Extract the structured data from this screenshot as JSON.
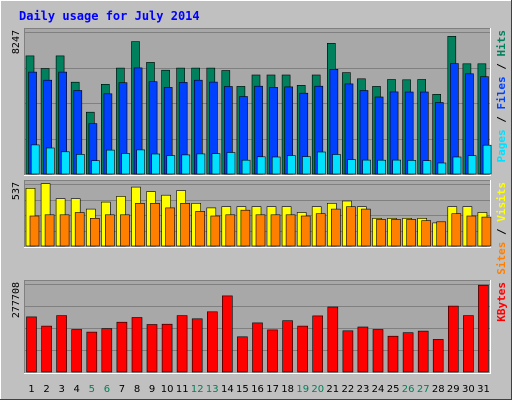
{
  "chart_data": [
    {
      "type": "bar",
      "title": "Daily usage for July 2014",
      "categories": [
        "1",
        "2",
        "3",
        "4",
        "5",
        "6",
        "7",
        "8",
        "9",
        "10",
        "11",
        "12",
        "13",
        "14",
        "15",
        "16",
        "17",
        "18",
        "19",
        "20",
        "21",
        "22",
        "23",
        "24",
        "25",
        "26",
        "27",
        "28",
        "29",
        "30",
        "31"
      ],
      "weekend_days": [
        "5",
        "6",
        "12",
        "13",
        "19",
        "20",
        "26",
        "27"
      ],
      "panel": "hits",
      "ylabel_parts": [
        "Pages",
        "Files",
        "Hits"
      ],
      "ytick_label": "8247",
      "ylim": [
        0,
        8247
      ],
      "series": [
        {
          "name": "Hits",
          "color": "#00805c",
          "values": [
            6860,
            6130,
            6860,
            5330,
            3590,
            5210,
            6150,
            7690,
            6480,
            6030,
            6150,
            6150,
            6150,
            6010,
            5090,
            5750,
            5750,
            5750,
            5150,
            5750,
            7590,
            5890,
            5530,
            5090,
            5490,
            5470,
            5490,
            4630,
            8000,
            6400,
            6400
          ]
        },
        {
          "name": "Files",
          "color": "#0040ff",
          "values": [
            5920,
            5450,
            5920,
            4850,
            2930,
            4660,
            5300,
            6160,
            5360,
            5030,
            5320,
            5450,
            5340,
            5080,
            4500,
            5100,
            5030,
            5060,
            4690,
            5100,
            6080,
            5230,
            4850,
            4470,
            4770,
            4760,
            4760,
            4150,
            6410,
            5820,
            5650
          ]
        },
        {
          "name": "Pages",
          "color": "#00e0ff",
          "values": [
            1690,
            1510,
            1290,
            1140,
            770,
            1390,
            1190,
            1400,
            1160,
            1070,
            1110,
            1170,
            1180,
            1250,
            800,
            1000,
            990,
            1070,
            1010,
            1280,
            1130,
            830,
            810,
            800,
            810,
            790,
            770,
            640,
            990,
            1060,
            1670
          ]
        }
      ]
    },
    {
      "type": "bar",
      "panel": "visits",
      "ylabel_parts": [
        "Sites",
        "Visits"
      ],
      "ytick_label": "537",
      "ylim": [
        0,
        537
      ],
      "series": [
        {
          "name": "Visits",
          "color": "#ffff00",
          "values": [
            500,
            540,
            410,
            410,
            320,
            380,
            430,
            510,
            470,
            440,
            480,
            370,
            330,
            340,
            340,
            340,
            340,
            340,
            290,
            340,
            370,
            390,
            340,
            240,
            240,
            240,
            240,
            200,
            340,
            340,
            290
          ]
        },
        {
          "name": "Sites",
          "color": "#ff8000",
          "values": [
            260,
            270,
            270,
            290,
            240,
            270,
            270,
            370,
            370,
            330,
            370,
            300,
            260,
            270,
            310,
            270,
            270,
            270,
            260,
            280,
            320,
            340,
            320,
            230,
            230,
            230,
            220,
            210,
            280,
            260,
            250
          ]
        }
      ]
    },
    {
      "type": "bar",
      "panel": "kbytes",
      "ylabel_parts": [
        "KBytes"
      ],
      "ytick_label": "277708",
      "ylim": [
        0,
        277708
      ],
      "series": [
        {
          "name": "KBytes",
          "color": "#ff0000",
          "values": [
            174000,
            145000,
            178000,
            134000,
            126000,
            137000,
            157000,
            172000,
            150000,
            151000,
            178000,
            168000,
            190000,
            240000,
            111000,
            155000,
            133000,
            162000,
            145000,
            177000,
            205000,
            130000,
            142000,
            134000,
            113000,
            124000,
            129000,
            103000,
            208000,
            178000,
            274000
          ]
        }
      ]
    }
  ],
  "ylabel_colors": {
    "Hits": "#00805c",
    "Files": "#0040ff",
    "Pages": "#00e0ff",
    "Visits": "#ffff00",
    "Sites": "#ff8000",
    "KBytes": "#ff0000",
    "separator": "#000000"
  },
  "colors": {
    "background": "#c0c0c0",
    "plot_background": "#a8a8a8",
    "title": "#0000ff",
    "weekday_label": "#000000",
    "weekend_label": "#00805c",
    "grid": "#808080"
  }
}
